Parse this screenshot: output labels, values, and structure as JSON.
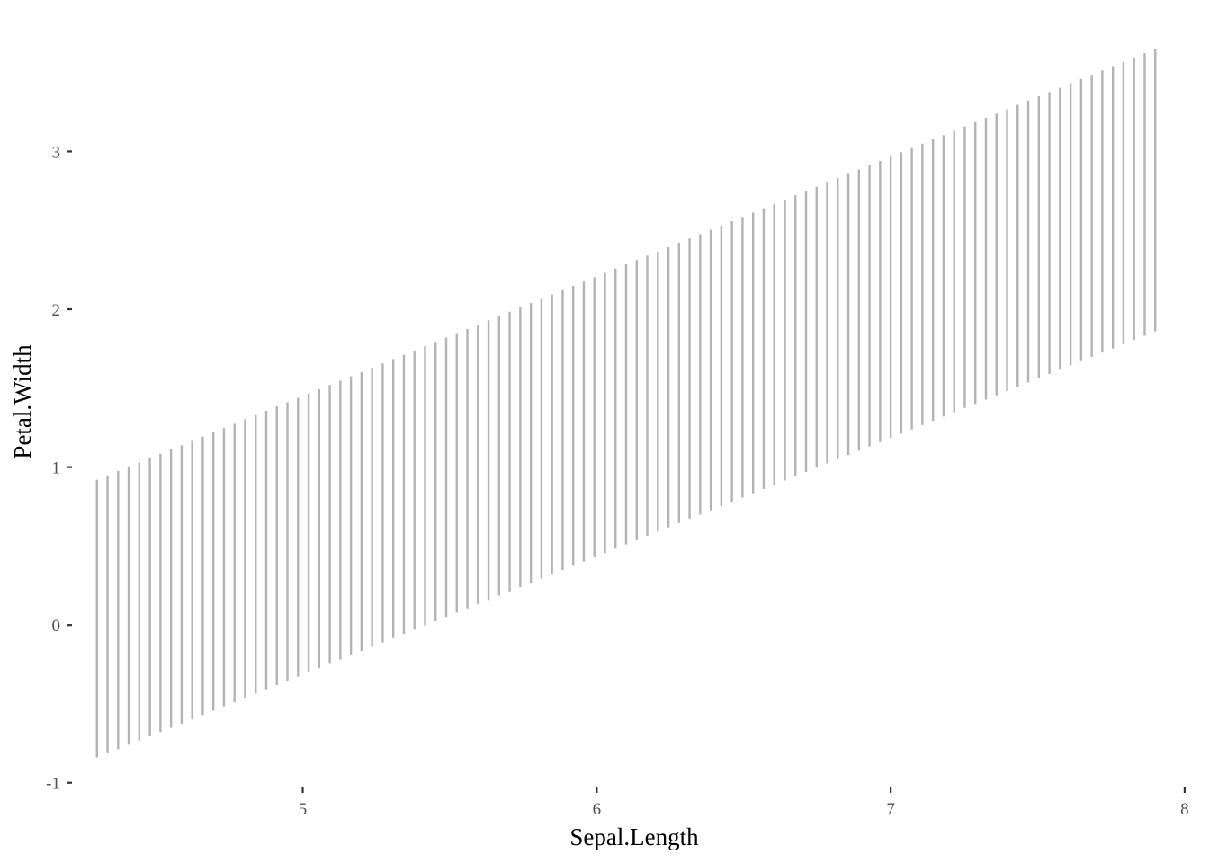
{
  "chart_data": {
    "type": "errorbar",
    "xlabel": "Sepal.Length",
    "ylabel": "Petal.Width",
    "xlim": [
      4.215,
      7.985
    ],
    "ylim": [
      -1.03,
      3.8
    ],
    "xticks": [
      5,
      6,
      7,
      8
    ],
    "yticks": [
      -1,
      0,
      1,
      2,
      3
    ],
    "x_start": 4.3,
    "x_end": 7.9,
    "n_bars": 101,
    "lower_start": -0.84,
    "lower_end": 1.86,
    "upper_start": 0.92,
    "upper_end": 3.65,
    "bar_color": "#b3b3b3",
    "grid": false,
    "legend": "none"
  }
}
